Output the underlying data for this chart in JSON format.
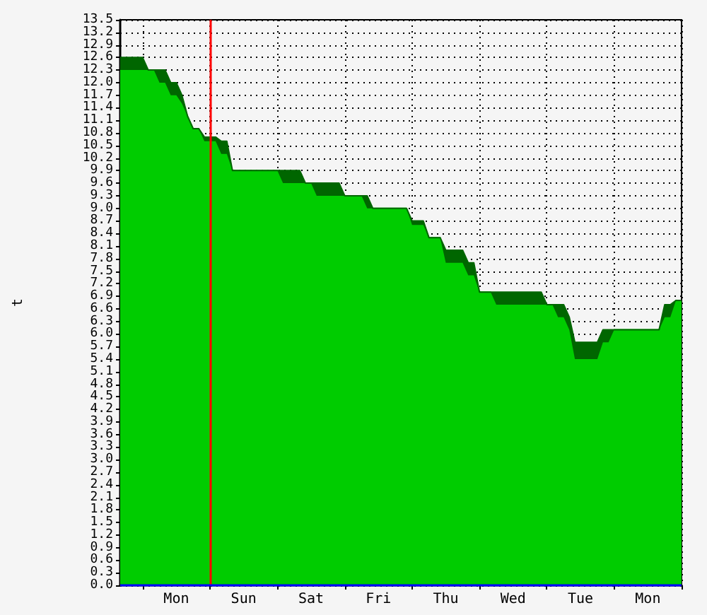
{
  "chart_data": {
    "type": "area",
    "stacked": true,
    "ylabel": "t",
    "categories": [
      null,
      null,
      null,
      null,
      null,
      null,
      null,
      null,
      null,
      null,
      "Mon",
      null,
      null,
      null,
      null,
      null,
      null,
      null,
      null,
      null,
      null,
      null,
      "Sun",
      null,
      null,
      null,
      null,
      null,
      null,
      null,
      null,
      null,
      null,
      null,
      "Sat",
      null,
      null,
      null,
      null,
      null,
      null,
      null,
      null,
      null,
      null,
      null,
      "Fri",
      null,
      null,
      null,
      null,
      null,
      null,
      null,
      null,
      null,
      null,
      null,
      "Thu",
      null,
      null,
      null,
      null,
      null,
      null,
      null,
      null,
      null,
      null,
      null,
      "Wed",
      null,
      null,
      null,
      null,
      null,
      null,
      null,
      null,
      null,
      null,
      null,
      "Tue",
      null,
      null,
      null,
      null,
      null,
      null,
      null,
      null,
      null,
      null,
      null,
      "Mon",
      null,
      null,
      null,
      null,
      null,
      null
    ],
    "ylim": [
      0,
      13.5
    ],
    "yticks": [
      {
        "value": 0,
        "label": "0.0"
      },
      0.3,
      0.6,
      0.9,
      1.2,
      1.5,
      1.8,
      2.1,
      2.4,
      2.7,
      {
        "value": 3,
        "label": "3.0"
      },
      3.3,
      3.6,
      3.9,
      4.2,
      4.5,
      4.8,
      5.1,
      5.4,
      5.7,
      {
        "value": 6,
        "label": "6.0"
      },
      6.3,
      6.6,
      6.9,
      7.2,
      7.5,
      7.8,
      8.1,
      8.4,
      8.7,
      {
        "value": 9,
        "label": "9.0"
      },
      9.3,
      9.6,
      9.9,
      10.2,
      10.5,
      10.8,
      11.1,
      11.4,
      11.7,
      {
        "value": 12,
        "label": "12.0"
      },
      12.3,
      12.6,
      12.9,
      13.2,
      13.5
    ],
    "series": [
      {
        "color": "#00cc00",
        "values": [
          12.3,
          12.3,
          12.3,
          12.3,
          12.3,
          12.3,
          12.3,
          12.0,
          12.0,
          11.7,
          11.7,
          11.5,
          11.2,
          10.9,
          10.9,
          10.6,
          10.6,
          10.6,
          10.3,
          10.3,
          9.9,
          9.9,
          9.9,
          9.9,
          9.9,
          9.9,
          9.9,
          9.9,
          9.9,
          9.6,
          9.6,
          9.6,
          9.6,
          9.6,
          9.6,
          9.3,
          9.3,
          9.3,
          9.3,
          9.3,
          9.3,
          9.3,
          9.3,
          9.3,
          9.0,
          9.0,
          9.0,
          9.0,
          9.0,
          9.0,
          9.0,
          9.0,
          8.6,
          8.6,
          8.6,
          8.3,
          8.3,
          8.3,
          7.7,
          7.7,
          7.7,
          7.7,
          7.4,
          7.4,
          7.0,
          7.0,
          7.0,
          6.7,
          6.7,
          6.7,
          6.7,
          6.7,
          6.7,
          6.7,
          6.7,
          6.7,
          6.7,
          6.7,
          6.4,
          6.4,
          6.1,
          5.4,
          5.4,
          5.4,
          5.4,
          5.4,
          5.8,
          5.8,
          6.1,
          6.1,
          6.1,
          6.1,
          6.1,
          6.1,
          6.1,
          6.1,
          6.1,
          6.4,
          6.4,
          6.8,
          6.8
        ]
      },
      {
        "color": "#006600",
        "values": [
          0.3,
          0.3,
          0.3,
          0.3,
          0.3,
          0,
          0,
          0.3,
          0.3,
          0.3,
          0.3,
          0.2,
          0,
          0,
          0,
          0.1,
          0.1,
          0.1,
          0.3,
          0.3,
          0,
          0,
          0,
          0,
          0,
          0,
          0,
          0,
          0,
          0.3,
          0.3,
          0.3,
          0.3,
          0,
          0,
          0.3,
          0.3,
          0.3,
          0.3,
          0.3,
          0,
          0,
          0,
          0,
          0.3,
          0,
          0,
          0,
          0,
          0,
          0,
          0,
          0.1,
          0.1,
          0.1,
          0,
          0,
          0,
          0.3,
          0.3,
          0.3,
          0.3,
          0.3,
          0.3,
          0,
          0,
          0,
          0.3,
          0.3,
          0.3,
          0.3,
          0.3,
          0.3,
          0.3,
          0.3,
          0.3,
          0,
          0,
          0.3,
          0.3,
          0.3,
          0.4,
          0.4,
          0.4,
          0.4,
          0.4,
          0.3,
          0.3,
          0,
          0,
          0,
          0,
          0,
          0,
          0,
          0,
          0,
          0.3,
          0.3,
          0,
          0
        ]
      }
    ],
    "ref_lines": [
      {
        "axis": "y",
        "value": 0,
        "color": "#0000ff"
      }
    ],
    "grid": true
  }
}
